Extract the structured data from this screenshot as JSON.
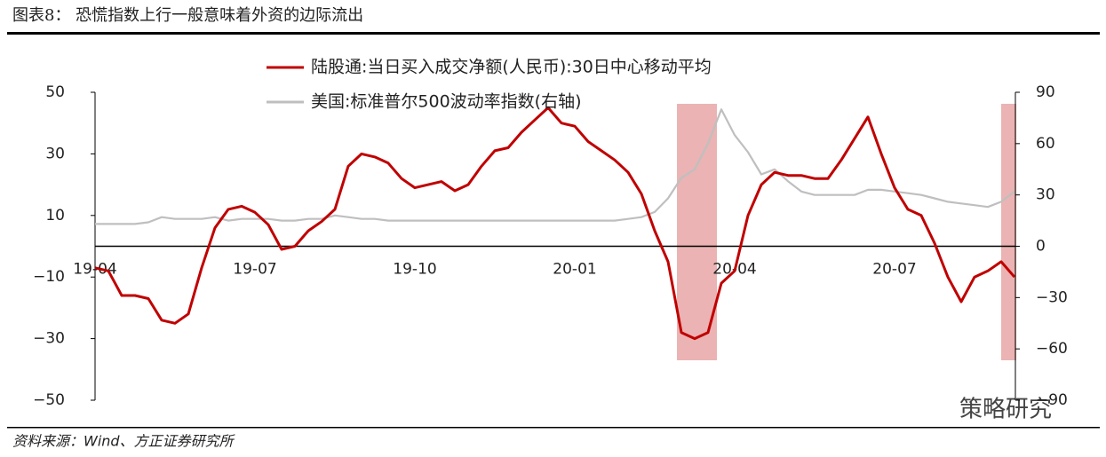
{
  "chart_data": {
    "type": "line",
    "title": "图表8：  恐慌指数上行一般意味着外资的边际流出",
    "source": "资料来源：Wind、方正证券研究所",
    "watermark": "策略研究",
    "categories": [
      "19-04",
      null,
      null,
      null,
      null,
      null,
      null,
      null,
      null,
      null,
      null,
      null,
      "19-07",
      null,
      null,
      null,
      null,
      null,
      null,
      null,
      null,
      null,
      null,
      null,
      "19-10",
      null,
      null,
      null,
      null,
      null,
      null,
      null,
      null,
      null,
      null,
      null,
      "20-01",
      null,
      null,
      null,
      null,
      null,
      null,
      null,
      null,
      null,
      null,
      null,
      "20-04",
      null,
      null,
      null,
      null,
      null,
      null,
      null,
      null,
      null,
      null,
      null,
      "20-07",
      null,
      null,
      null,
      null,
      null,
      null,
      null,
      null,
      null
    ],
    "series": [
      {
        "name": "陆股通:当日买入成交净额(人民币):30日中心移动平均",
        "color": "#c00000",
        "values": [
          -7,
          -8,
          -16,
          -16,
          -17,
          -24,
          -25,
          -22,
          -7,
          6,
          12,
          13,
          11,
          7,
          -1,
          0,
          5,
          8,
          12,
          26,
          30,
          29,
          27,
          22,
          19,
          20,
          21,
          18,
          20,
          26,
          31,
          32,
          37,
          41,
          45,
          40,
          39,
          34,
          31,
          28,
          24,
          17,
          5,
          -5,
          -28,
          -30,
          -28,
          -12,
          -8,
          10,
          20,
          24,
          23,
          23,
          22,
          22,
          28,
          35,
          42,
          30,
          19,
          12,
          10,
          1,
          -10,
          -18,
          -10,
          -8,
          -5,
          -10
        ]
      },
      {
        "name": "美国:标准普尔500波动率指数(右轴)",
        "color": "#bfbfbf",
        "axis": "y2",
        "values": [
          13,
          13,
          13,
          13,
          14,
          17,
          16,
          16,
          16,
          17,
          15,
          16,
          16,
          16,
          15,
          15,
          16,
          16,
          18,
          17,
          16,
          16,
          15,
          15,
          15,
          15,
          15,
          15,
          15,
          15,
          15,
          15,
          15,
          15,
          15,
          15,
          15,
          15,
          15,
          15,
          16,
          17,
          20,
          28,
          40,
          45,
          60,
          80,
          65,
          55,
          42,
          45,
          38,
          32,
          30,
          30,
          30,
          30,
          33,
          33,
          32,
          31,
          30,
          28,
          26,
          25,
          24,
          23,
          26,
          32
        ]
      }
    ],
    "ylim": [
      -50,
      50
    ],
    "yticks": [
      {
        "value": -50,
        "label": "−50"
      },
      {
        "value": -30,
        "label": "−30"
      },
      {
        "value": -10,
        "label": "−10"
      },
      10,
      30,
      50
    ],
    "y2lim": [
      -90,
      90
    ],
    "y2ticks": [
      {
        "value": -90,
        "label": "−90"
      },
      {
        "value": -60,
        "label": "−60"
      },
      {
        "value": -30,
        "label": "−30"
      },
      0,
      30,
      60,
      90
    ]
  }
}
